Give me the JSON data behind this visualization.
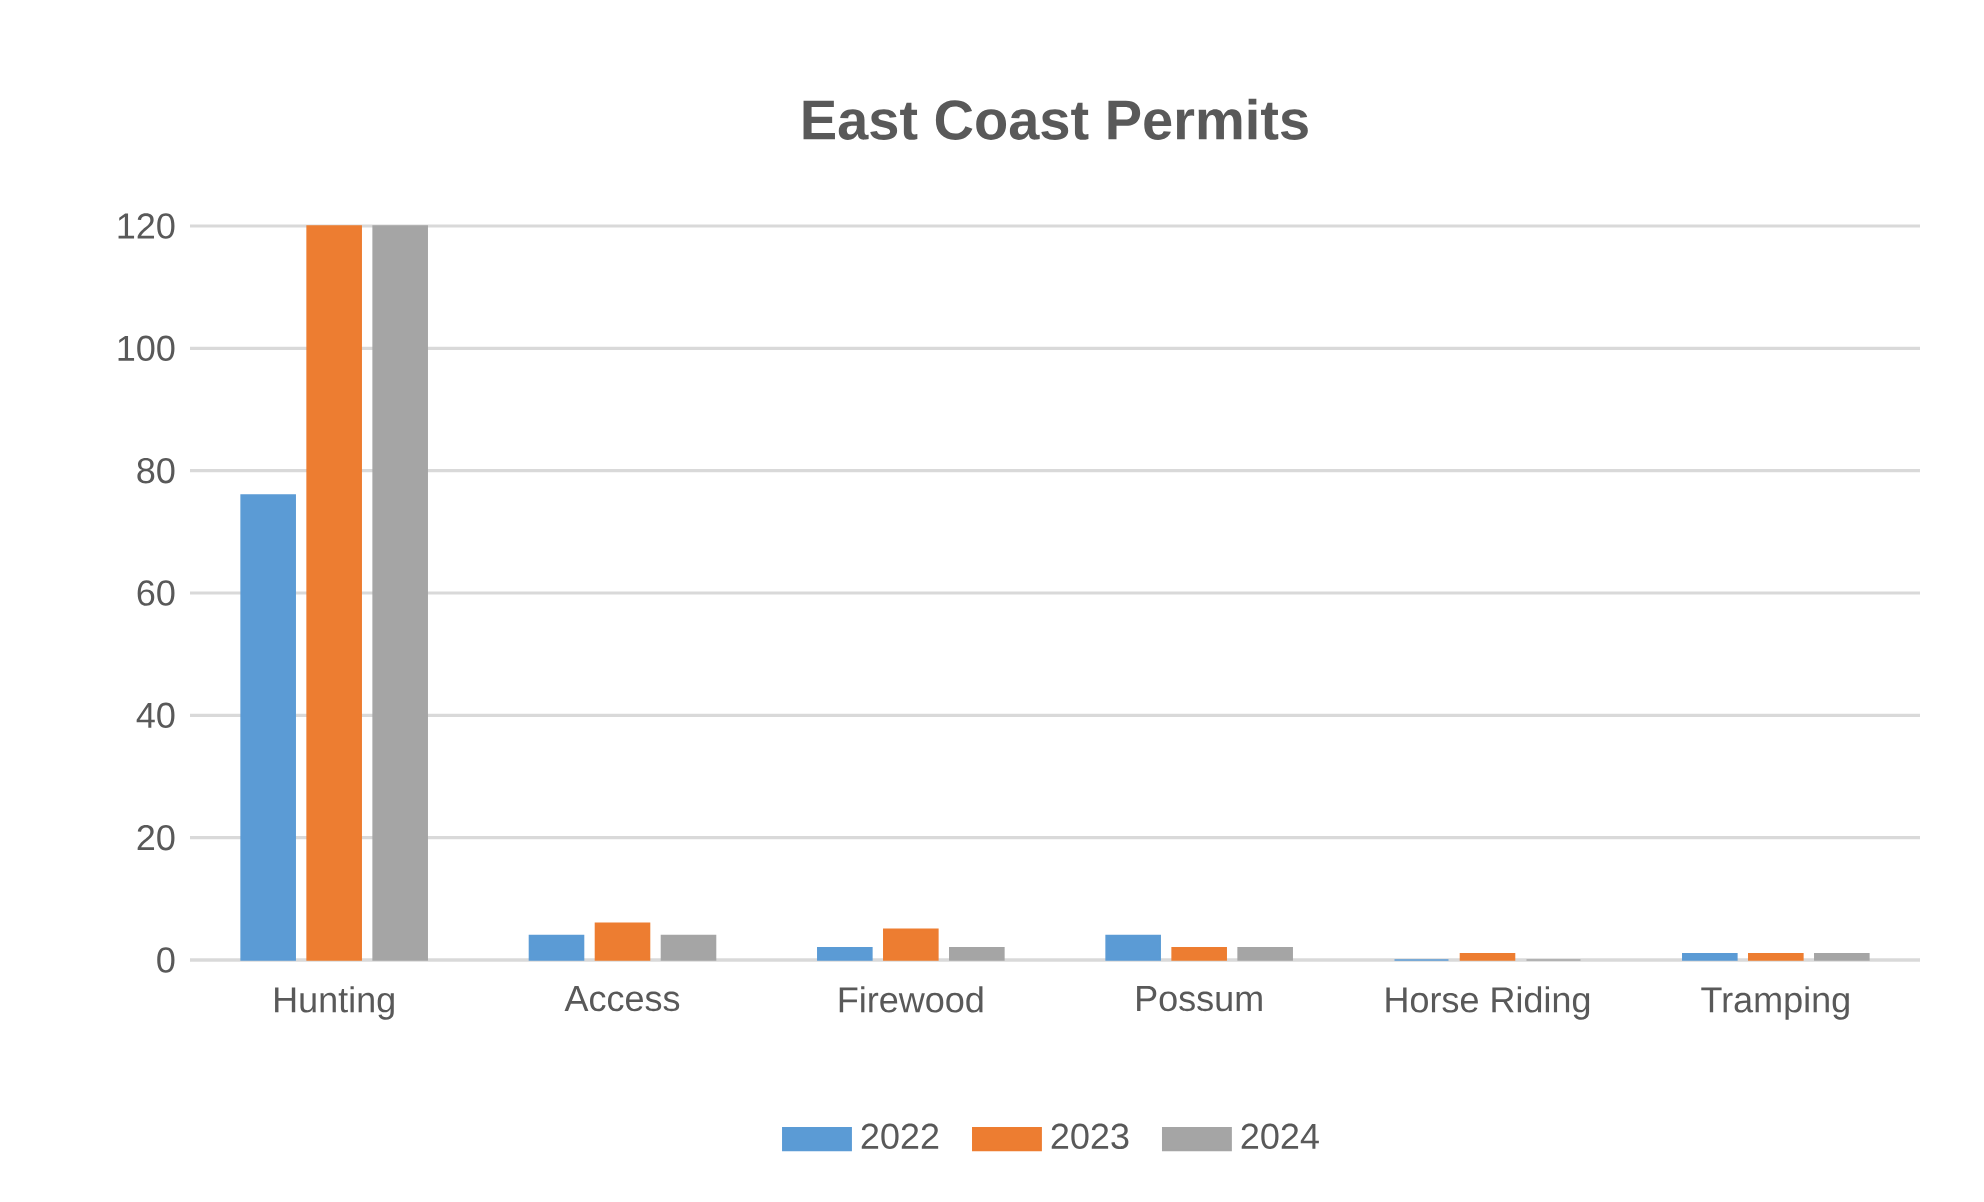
{
  "chart_data": {
    "type": "bar",
    "title": "East Coast Permits",
    "categories": [
      "Hunting",
      "Access",
      "Firewood",
      "Possum",
      "Horse Riding",
      "Tramping"
    ],
    "series": [
      {
        "name": "2022",
        "color": "#5b9bd5",
        "values": [
          76,
          4,
          2,
          4,
          0,
          1
        ]
      },
      {
        "name": "2023",
        "color": "#ed7d31",
        "values": [
          120,
          6,
          5,
          2,
          1,
          1
        ]
      },
      {
        "name": "2024",
        "color": "#a5a5a5",
        "values": [
          120,
          4,
          2,
          2,
          0,
          1
        ]
      }
    ],
    "ylim": [
      0,
      120
    ],
    "yticks": [
      0,
      20,
      40,
      60,
      80,
      100,
      120
    ],
    "grid": "y",
    "legend": "bottom"
  }
}
